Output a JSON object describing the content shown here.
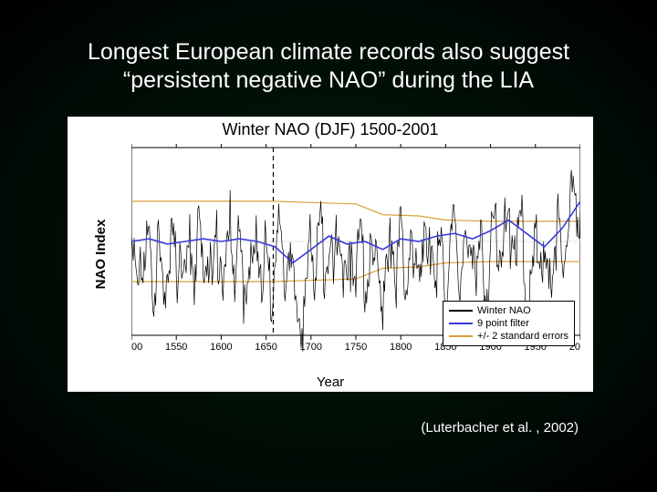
{
  "slide": {
    "title_line1": "Longest European climate records also suggest",
    "title_line2": "“persistent negative NAO” during the LIA",
    "citation": "(Luterbacher et al. , 2002)"
  },
  "chart": {
    "type": "line",
    "title": "Winter NAO (DJF) 1500-2001",
    "xlabel": "Year",
    "ylabel": "NAO Index",
    "xlim": [
      1500,
      2000
    ],
    "ylim": [
      -3.5,
      3.5
    ],
    "xtick_step": 50,
    "ytick_step": 1,
    "background_color": "#ffffff",
    "axis_color": "#000000",
    "tick_fontsize": 11,
    "label_fontsize": 15,
    "title_fontsize": 18,
    "vline_year": 1658,
    "vline_style": "dashed",
    "vline_color": "#000000",
    "series": {
      "winter_nao": {
        "label": "Winter NAO",
        "color": "#000000",
        "line_width": 0.7,
        "years": [
          1500,
          1505,
          1510,
          1515,
          1520,
          1525,
          1530,
          1535,
          1540,
          1545,
          1550,
          1555,
          1560,
          1565,
          1570,
          1575,
          1580,
          1585,
          1590,
          1595,
          1600,
          1605,
          1610,
          1615,
          1620,
          1625,
          1630,
          1635,
          1640,
          1645,
          1650,
          1655,
          1660,
          1665,
          1670,
          1675,
          1680,
          1685,
          1690,
          1695,
          1700,
          1705,
          1710,
          1715,
          1720,
          1725,
          1730,
          1735,
          1740,
          1745,
          1750,
          1755,
          1760,
          1765,
          1770,
          1775,
          1780,
          1785,
          1790,
          1795,
          1800,
          1805,
          1810,
          1815,
          1820,
          1825,
          1830,
          1835,
          1840,
          1845,
          1850,
          1855,
          1860,
          1865,
          1870,
          1875,
          1880,
          1885,
          1890,
          1895,
          1900,
          1905,
          1910,
          1915,
          1920,
          1925,
          1930,
          1935,
          1940,
          1945,
          1950,
          1955,
          1960,
          1965,
          1970,
          1975,
          1980,
          1985,
          1990,
          1995,
          2000
        ],
        "values": [
          0.3,
          -1.1,
          0.8,
          -0.4,
          1.2,
          -0.9,
          0.5,
          -1.3,
          0.2,
          0.9,
          -0.6,
          1.0,
          -1.2,
          0.7,
          -0.3,
          1.1,
          -0.8,
          0.4,
          -1.0,
          0.6,
          0.1,
          -0.9,
          1.3,
          -0.5,
          0.8,
          -1.1,
          0.3,
          -0.7,
          1.0,
          -0.4,
          0.6,
          -1.2,
          0.2,
          1.4,
          -0.9,
          0.5,
          -1.3,
          -1.8,
          -2.2,
          -1.5,
          0.8,
          -0.6,
          1.1,
          -0.3,
          0.9,
          -1.0,
          1.2,
          0.4,
          -2.0,
          0.7,
          -0.5,
          1.0,
          -0.8,
          0.3,
          -1.1,
          0.6,
          -1.4,
          -0.9,
          1.2,
          -0.4,
          0.8,
          -0.6,
          1.0,
          -1.2,
          0.5,
          0.9,
          -0.7,
          1.1,
          -0.3,
          0.4,
          -1.0,
          0.8,
          1.3,
          -0.5,
          0.6,
          -0.9,
          1.0,
          -0.4,
          0.7,
          -1.2,
          0.3,
          1.1,
          0.9,
          1.4,
          0.5,
          1.6,
          0.8,
          1.2,
          -1.5,
          -1.8,
          0.6,
          1.0,
          -0.7,
          -1.3,
          0.4,
          1.1,
          -0.5,
          1.8,
          2.1,
          2.4,
          1.3
        ]
      },
      "filter9": {
        "label": "9 point filter",
        "color": "#3a3ae0",
        "line_width": 1.6,
        "years": [
          1500,
          1520,
          1540,
          1560,
          1580,
          1600,
          1620,
          1640,
          1660,
          1680,
          1700,
          1720,
          1740,
          1760,
          1780,
          1800,
          1820,
          1840,
          1860,
          1880,
          1900,
          1920,
          1940,
          1960,
          1980,
          2000
        ],
        "values": [
          0.0,
          0.1,
          -0.1,
          0.0,
          0.1,
          0.0,
          0.1,
          0.0,
          -0.2,
          -0.8,
          -0.3,
          0.2,
          -0.1,
          0.0,
          -0.3,
          0.1,
          0.0,
          0.2,
          0.3,
          0.1,
          0.4,
          0.8,
          0.3,
          -0.2,
          0.5,
          1.5
        ]
      },
      "plus2se": {
        "label": "+/- 2 standard errors",
        "color": "#d9a13a",
        "line_width": 1.2,
        "years": [
          1500,
          1550,
          1600,
          1650,
          1658,
          1700,
          1750,
          1780,
          1820,
          1850,
          1900,
          2000
        ],
        "values": [
          1.5,
          1.5,
          1.5,
          1.5,
          1.5,
          1.45,
          1.4,
          1.0,
          0.95,
          0.8,
          0.75,
          0.75
        ]
      },
      "minus2se": {
        "color": "#d9a13a",
        "line_width": 1.2,
        "years": [
          1500,
          1550,
          1600,
          1650,
          1658,
          1700,
          1750,
          1780,
          1820,
          1850,
          1900,
          2000
        ],
        "values": [
          -1.5,
          -1.5,
          -1.5,
          -1.5,
          -1.5,
          -1.45,
          -1.4,
          -1.0,
          -0.95,
          -0.8,
          -0.75,
          -0.75
        ]
      }
    },
    "legend": {
      "position": "lower-right",
      "items": [
        "winter_nao",
        "filter9",
        "plus2se"
      ]
    }
  }
}
